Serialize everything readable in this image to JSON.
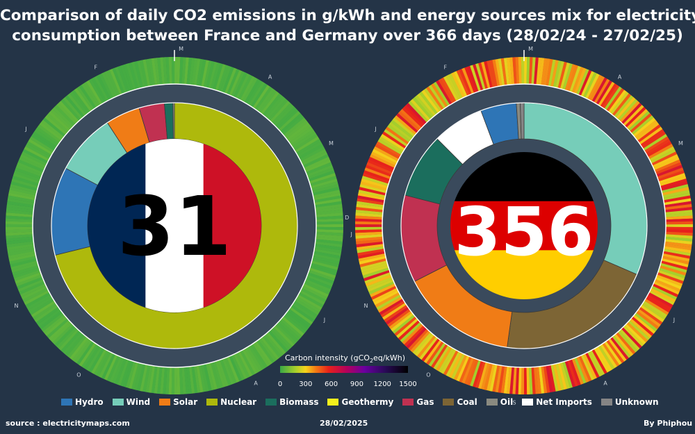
{
  "title": {
    "line1": "Comparison of daily CO2 emissions in g/kWh and energy sources mix for electricity",
    "line2": "consumption between France and Germany over 366 days (28/02/24 - 27/02/25)"
  },
  "footer": {
    "source": "source : electricitymaps.com",
    "date": "28/02/2025",
    "author": "By Phiphou"
  },
  "colorbar": {
    "label_prefix": "Carbon intensity (gCO",
    "label_sub": "2",
    "label_suffix": "eq/kWh)",
    "ticks": [
      "0",
      "300",
      "600",
      "900",
      "1200",
      "1500"
    ],
    "range": [
      0,
      1500
    ]
  },
  "month_labels": [
    "M",
    "A",
    "M",
    "J",
    "J",
    "A",
    "S",
    "O",
    "N",
    "D",
    "J",
    "F"
  ],
  "colors": {
    "Hydro": "#2e75b6",
    "Wind": "#76cdb9",
    "Solar": "#f07c16",
    "Nuclear": "#aeb90c",
    "Biomass": "#1b6e5d",
    "Geothermy": "#f4f01c",
    "Gas": "#c03151",
    "Coal": "#7d6535",
    "Oil": "#8a8a80",
    "Net Imports": "#ffffff",
    "Unknown": "#858585"
  },
  "legend": [
    "Hydro",
    "Wind",
    "Solar",
    "Nuclear",
    "Biomass",
    "Geothermy",
    "Gas",
    "Coal",
    "Oil",
    "Net Imports",
    "Unknown"
  ],
  "chart_data": [
    {
      "type": "pie",
      "country": "France",
      "center_value": "31",
      "mean_carbon_intensity": 31,
      "flag": [
        "#002654",
        "#ffffff",
        "#ce1126"
      ],
      "mix_order": [
        "Nuclear",
        "Hydro",
        "Wind",
        "Solar",
        "Gas",
        "Biomass",
        "Oil"
      ],
      "mix_percent": [
        70.5,
        11.5,
        8.0,
        4.5,
        3.3,
        1.1,
        0.2
      ],
      "daily_intensity_range": [
        15,
        70
      ]
    },
    {
      "type": "pie",
      "country": "Germany",
      "center_value": "356",
      "mean_carbon_intensity": 356,
      "flag": [
        "#000000",
        "#dd0000",
        "#ffce00"
      ],
      "mix_order": [
        "Wind",
        "Coal",
        "Solar",
        "Gas",
        "Biomass",
        "Net Imports",
        "Hydro",
        "Oil",
        "Unknown"
      ],
      "mix_percent": [
        31.5,
        20.7,
        15.3,
        11.5,
        8.5,
        6.8,
        4.7,
        0.5,
        0.5
      ],
      "daily_intensity_range": [
        170,
        640
      ]
    }
  ]
}
